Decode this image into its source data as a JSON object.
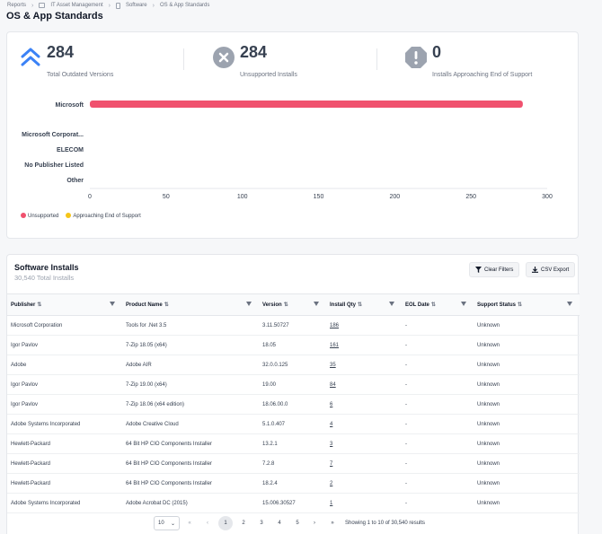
{
  "breadcrumb": [
    "Reports",
    "IT Asset Management",
    "Software",
    "OS & App Standards"
  ],
  "page_title": "OS & App Standards",
  "stats": [
    {
      "value": "284",
      "label": "Total Outdated Versions",
      "icon": "double-chevron-up-icon",
      "color": "#3b82f6"
    },
    {
      "value": "284",
      "label": "Unsupported Installs",
      "icon": "x-circle-icon",
      "color": "#9ca3af"
    },
    {
      "value": "0",
      "label": "Installs Approaching End of Support",
      "icon": "exclamation-octagon-icon",
      "color": "#9ca3af"
    }
  ],
  "chart_data": {
    "type": "bar",
    "orientation": "horizontal",
    "stacked": true,
    "categories": [
      "Microsoft",
      "Microsoft Corporat...",
      "ELECOM",
      "No Publisher Listed",
      "Other"
    ],
    "series": [
      {
        "name": "Unsupported",
        "color": "#f0516e",
        "values": [
          284,
          0,
          0,
          0,
          0
        ]
      },
      {
        "name": "Approaching End of Support",
        "color": "#f5c518",
        "values": [
          0,
          0,
          0,
          0,
          0
        ]
      }
    ],
    "xticks": [
      0,
      50,
      100,
      150,
      200,
      250,
      300
    ],
    "xlim": [
      0,
      300
    ],
    "legend_position": "bottom-left",
    "grid": false
  },
  "table": {
    "title": "Software Installs",
    "subtitle": "30,540 Total Installs",
    "clear_filters_label": "Clear Filters",
    "csv_export_label": "CSV Export",
    "columns": [
      "Publisher",
      "Product Name",
      "Version",
      "Install Qty",
      "EOL Date",
      "Support Status"
    ],
    "rows": [
      [
        "Microsoft Corporation",
        "Tools for .Net 3.5",
        "3.11.50727",
        "186",
        "-",
        "Unknown"
      ],
      [
        "Igor Pavlov",
        "7-Zip 18.05 (x64)",
        "18.05",
        "161",
        "-",
        "Unknown"
      ],
      [
        "Adobe",
        "Adobe AIR",
        "32.0.0.125",
        "35",
        "-",
        "Unknown"
      ],
      [
        "Igor Pavlov",
        "7-Zip 19.00 (x64)",
        "19.00",
        "84",
        "-",
        "Unknown"
      ],
      [
        "Igor Pavlov",
        "7-Zip 18.06 (x64 edition)",
        "18.06.00.0",
        "6",
        "-",
        "Unknown"
      ],
      [
        "Adobe Systems Incorporated",
        "Adobe Creative Cloud",
        "5.1.0.407",
        "4",
        "-",
        "Unknown"
      ],
      [
        "Hewlett-Packard",
        "64 Bit HP CIO Components Installer",
        "13.2.1",
        "3",
        "-",
        "Unknown"
      ],
      [
        "Hewlett-Packard",
        "64 Bit HP CIO Components Installer",
        "7.2.8",
        "7",
        "-",
        "Unknown"
      ],
      [
        "Hewlett-Packard",
        "64 Bit HP CIO Components Installer",
        "18.2.4",
        "2",
        "-",
        "Unknown"
      ],
      [
        "Adobe Systems Incorporated",
        "Adobe Acrobat DC (2015)",
        "15.006.30527",
        "1",
        "-",
        "Unknown"
      ]
    ]
  },
  "pagination": {
    "page_size": "10",
    "pages": [
      "1",
      "2",
      "3",
      "4",
      "5"
    ],
    "current_page": "1",
    "first": "«",
    "prev": "‹",
    "next": "›",
    "last": "»",
    "info": "Showing 1 to 10 of 30,540 results"
  }
}
